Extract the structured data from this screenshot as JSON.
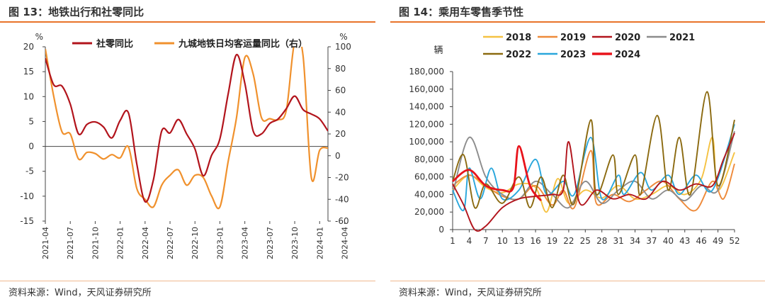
{
  "left": {
    "title": "图 13：地铁出行和社零同比",
    "source": "资料来源：Wind，天风证券研究所",
    "chart_data": {
      "type": "line",
      "x": [
        "2021-04",
        "2021-07",
        "2021-10",
        "2022-01",
        "2022-04",
        "2022-07",
        "2022-10",
        "2023-01",
        "2023-04",
        "2023-07",
        "2023-10",
        "2024-01",
        "2024-04"
      ],
      "y_left": {
        "unit": "%",
        "ylim": [
          -15,
          20
        ],
        "ticks": [
          20,
          15,
          10,
          5,
          0,
          -5,
          -10,
          -15
        ]
      },
      "y_right": {
        "unit": "%",
        "ylim": [
          -60,
          100
        ],
        "ticks": [
          100,
          80,
          60,
          40,
          20,
          0,
          -20,
          -40,
          -60
        ]
      },
      "legend": [
        "社零同比",
        "九城地铁日均客运量同比（右）"
      ],
      "series": [
        {
          "name": "社零同比",
          "axis": "left",
          "color": "#b2141c",
          "values": [
            [
              0,
              17.7
            ],
            [
              1,
              12.4
            ],
            [
              2,
              12.1
            ],
            [
              3,
              8.5
            ],
            [
              4,
              2.5
            ],
            [
              5,
              4.4
            ],
            [
              6,
              4.9
            ],
            [
              7,
              3.9
            ],
            [
              8,
              1.7
            ],
            [
              9,
              5.2
            ],
            [
              10,
              6.7
            ],
            [
              11,
              -3.5
            ],
            [
              12,
              -11.1
            ],
            [
              13,
              -6.7
            ],
            [
              14,
              3.1
            ],
            [
              15,
              2.7
            ],
            [
              16,
              5.4
            ],
            [
              17,
              2.5
            ],
            [
              18,
              -0.5
            ],
            [
              19,
              -5.9
            ],
            [
              20,
              -1.8
            ],
            [
              21,
              1.5
            ],
            [
              22,
              10.6
            ],
            [
              23,
              18.4
            ],
            [
              24,
              12.7
            ],
            [
              25,
              3.1
            ],
            [
              26,
              2.5
            ],
            [
              27,
              4.6
            ],
            [
              28,
              5.5
            ],
            [
              29,
              7.6
            ],
            [
              30,
              10.1
            ],
            [
              31,
              7.4
            ],
            [
              32,
              6.5
            ],
            [
              33,
              5.5
            ],
            [
              34,
              3.1
            ]
          ]
        },
        {
          "name": "九城地铁日均客运量同比（右）",
          "axis": "right",
          "color": "#f0912d",
          "values": [
            [
              0,
              98
            ],
            [
              1,
              55
            ],
            [
              2,
              22
            ],
            [
              3,
              20
            ],
            [
              4,
              -3
            ],
            [
              5,
              3
            ],
            [
              6,
              2
            ],
            [
              7,
              -3
            ],
            [
              8,
              1
            ],
            [
              9,
              -2
            ],
            [
              10,
              8
            ],
            [
              11,
              -30
            ],
            [
              12,
              -40
            ],
            [
              13,
              -47
            ],
            [
              14,
              -27
            ],
            [
              15,
              -18
            ],
            [
              16,
              -13
            ],
            [
              17,
              -27
            ],
            [
              18,
              -18
            ],
            [
              19,
              -20
            ],
            [
              20,
              -37
            ],
            [
              21,
              -47
            ],
            [
              22,
              -5
            ],
            [
              23,
              35
            ],
            [
              24,
              90
            ],
            [
              25,
              75
            ],
            [
              26,
              35
            ],
            [
              27,
              34
            ],
            [
              28,
              33
            ],
            [
              29,
              42
            ],
            [
              30,
              105
            ],
            [
              31,
              92
            ],
            [
              32,
              -20
            ],
            [
              33,
              5
            ],
            [
              34,
              7
            ]
          ]
        }
      ]
    }
  },
  "right": {
    "title": "图 14：乘用车零售季节性",
    "source": "资料来源：Wind，天风证券研究所",
    "chart_data": {
      "type": "line",
      "ylabel": "辆",
      "ylim": [
        0,
        180000
      ],
      "y_ticks": [
        180000,
        160000,
        140000,
        120000,
        100000,
        80000,
        60000,
        40000,
        20000,
        0
      ],
      "y_tick_labels": [
        "180,000",
        "160,000",
        "140,000",
        "120,000",
        "100,000",
        "80,000",
        "60,000",
        "40,000",
        "20,000",
        "0"
      ],
      "x_ticks": [
        1,
        4,
        7,
        10,
        13,
        16,
        19,
        22,
        25,
        28,
        31,
        34,
        37,
        40,
        43,
        46,
        49,
        52
      ],
      "xlim": [
        1,
        52
      ],
      "series": [
        {
          "name": "2018",
          "color": "#f5c242",
          "values": [
            [
              1,
              45000
            ],
            [
              4,
              62000
            ],
            [
              7,
              48000
            ],
            [
              10,
              42000
            ],
            [
              13,
              52000
            ],
            [
              16,
              48000
            ],
            [
              18,
              20000
            ],
            [
              20,
              58000
            ],
            [
              22,
              30000
            ],
            [
              25,
              45000
            ],
            [
              28,
              36000
            ],
            [
              31,
              50000
            ],
            [
              34,
              35000
            ],
            [
              37,
              40000
            ],
            [
              40,
              50000
            ],
            [
              43,
              40000
            ],
            [
              46,
              58000
            ],
            [
              48,
              105000
            ],
            [
              49,
              45000
            ],
            [
              52,
              88000
            ]
          ]
        },
        {
          "name": "2019",
          "color": "#ee8a3a",
          "values": [
            [
              1,
              50000
            ],
            [
              4,
              62000
            ],
            [
              7,
              50000
            ],
            [
              10,
              38000
            ],
            [
              13,
              35000
            ],
            [
              16,
              50000
            ],
            [
              19,
              28000
            ],
            [
              21,
              45000
            ],
            [
              23,
              25000
            ],
            [
              26,
              90000
            ],
            [
              27,
              30000
            ],
            [
              30,
              40000
            ],
            [
              33,
              32000
            ],
            [
              36,
              45000
            ],
            [
              39,
              55000
            ],
            [
              42,
              35000
            ],
            [
              45,
              22000
            ],
            [
              48,
              55000
            ],
            [
              50,
              35000
            ],
            [
              52,
              75000
            ]
          ]
        },
        {
          "name": "2020",
          "color": "#b2141c",
          "values": [
            [
              1,
              52000
            ],
            [
              3,
              28000
            ],
            [
              5,
              0
            ],
            [
              7,
              4000
            ],
            [
              10,
              25000
            ],
            [
              13,
              35000
            ],
            [
              16,
              38000
            ],
            [
              19,
              40000
            ],
            [
              21,
              45000
            ],
            [
              22,
              100000
            ],
            [
              24,
              30000
            ],
            [
              27,
              45000
            ],
            [
              30,
              35000
            ],
            [
              33,
              40000
            ],
            [
              36,
              35000
            ],
            [
              39,
              55000
            ],
            [
              42,
              45000
            ],
            [
              45,
              52000
            ],
            [
              48,
              50000
            ],
            [
              50,
              80000
            ],
            [
              52,
              110000
            ]
          ]
        },
        {
          "name": "2021",
          "color": "#8c8c8c",
          "values": [
            [
              1,
              40000
            ],
            [
              4,
              105000
            ],
            [
              7,
              60000
            ],
            [
              10,
              40000
            ],
            [
              13,
              35000
            ],
            [
              16,
              55000
            ],
            [
              19,
              40000
            ],
            [
              22,
              25000
            ],
            [
              25,
              55000
            ],
            [
              28,
              30000
            ],
            [
              31,
              45000
            ],
            [
              34,
              55000
            ],
            [
              37,
              35000
            ],
            [
              40,
              45000
            ],
            [
              43,
              33000
            ],
            [
              46,
              50000
            ],
            [
              49,
              45000
            ],
            [
              52,
              112000
            ]
          ]
        },
        {
          "name": "2022",
          "color": "#8b6a10",
          "values": [
            [
              1,
              55000
            ],
            [
              3,
              85000
            ],
            [
              5,
              25000
            ],
            [
              7,
              52000
            ],
            [
              10,
              30000
            ],
            [
              13,
              60000
            ],
            [
              15,
              25000
            ],
            [
              17,
              60000
            ],
            [
              19,
              25000
            ],
            [
              21,
              62000
            ],
            [
              23,
              30000
            ],
            [
              26,
              125000
            ],
            [
              27,
              40000
            ],
            [
              30,
              85000
            ],
            [
              31,
              40000
            ],
            [
              34,
              85000
            ],
            [
              35,
              40000
            ],
            [
              38,
              130000
            ],
            [
              40,
              45000
            ],
            [
              42,
              105000
            ],
            [
              44,
              40000
            ],
            [
              47,
              157000
            ],
            [
              49,
              50000
            ],
            [
              52,
              125000
            ]
          ]
        },
        {
          "name": "2023",
          "color": "#2aa7dc",
          "values": [
            [
              1,
              45000
            ],
            [
              3,
              22000
            ],
            [
              4,
              70000
            ],
            [
              6,
              35000
            ],
            [
              8,
              70000
            ],
            [
              10,
              35000
            ],
            [
              13,
              45000
            ],
            [
              16,
              80000
            ],
            [
              18,
              40000
            ],
            [
              21,
              55000
            ],
            [
              23,
              40000
            ],
            [
              26,
              105000
            ],
            [
              28,
              35000
            ],
            [
              31,
              62000
            ],
            [
              32,
              40000
            ],
            [
              35,
              65000
            ],
            [
              37,
              45000
            ],
            [
              40,
              62000
            ],
            [
              42,
              40000
            ],
            [
              45,
              62000
            ],
            [
              48,
              45000
            ],
            [
              52,
              120000
            ]
          ]
        },
        {
          "name": "2024",
          "color": "#e8131b",
          "values": [
            [
              1,
              55000
            ],
            [
              4,
              68000
            ],
            [
              7,
              50000
            ],
            [
              10,
              45000
            ],
            [
              12,
              48000
            ],
            [
              13,
              95000
            ],
            [
              15,
              50000
            ],
            [
              17,
              33000
            ]
          ]
        }
      ]
    }
  }
}
